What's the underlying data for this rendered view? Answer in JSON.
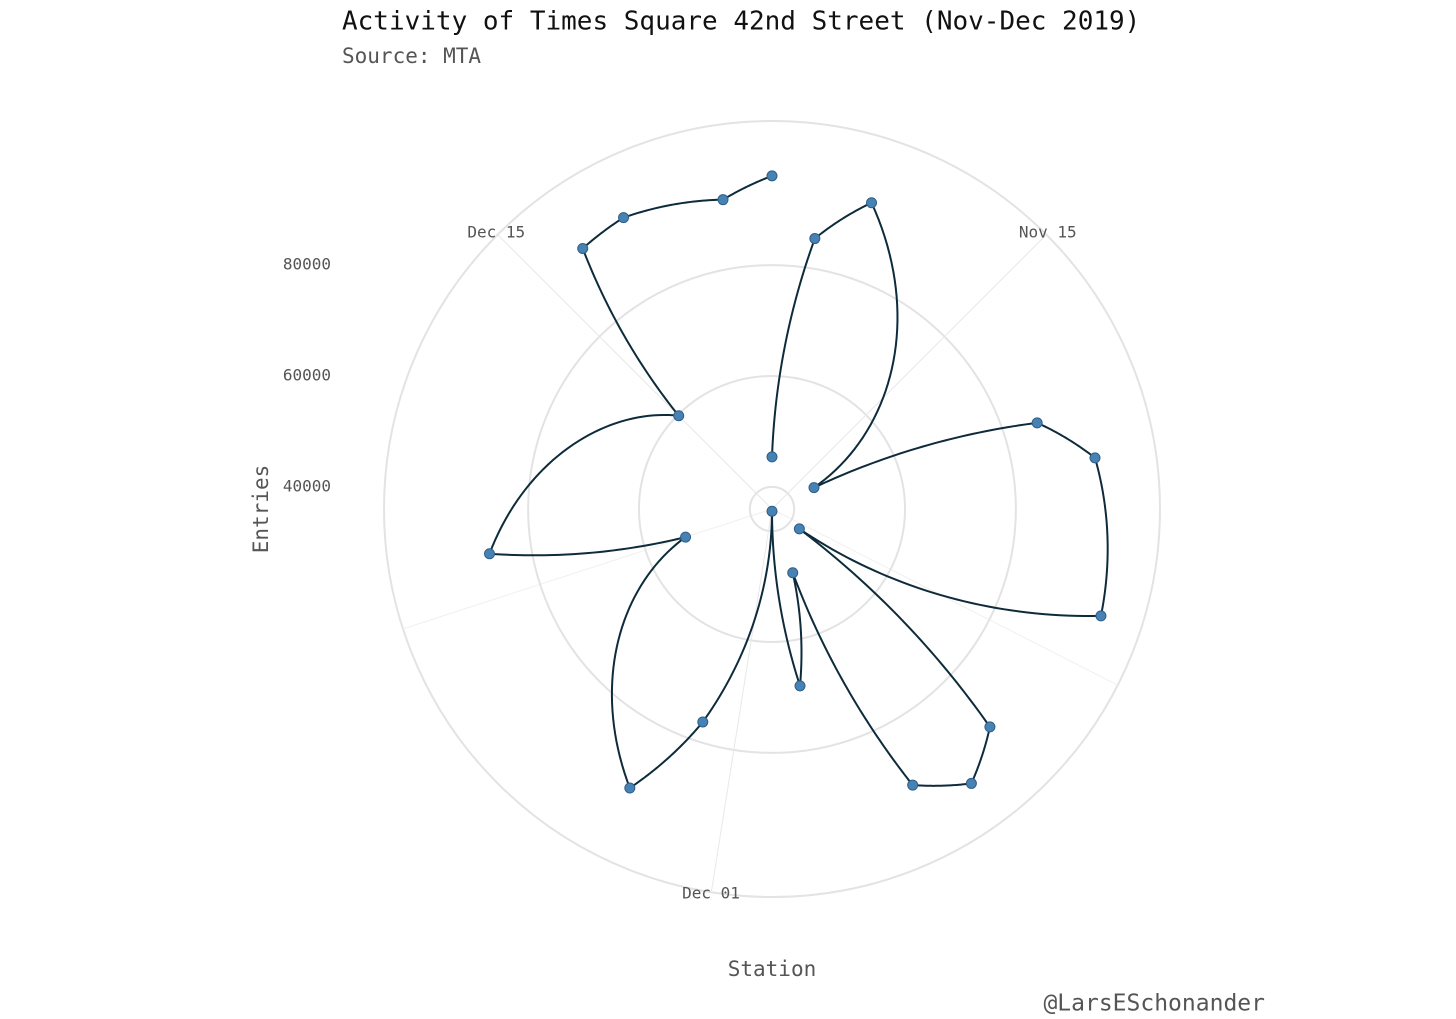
{
  "chart_data": {
    "type": "polar-line",
    "title": "Activity of Times Square 42nd Street (Nov-Dec 2019)",
    "subtitle": "Source: MTA",
    "x_label": "Station",
    "y_label": "Entries",
    "caption": "@LarsESchonander",
    "series": [
      {
        "name": "Entries",
        "color": "#4682b4",
        "line_color": "#0d2b3a",
        "x": [
          "Nov 10",
          "Nov 11",
          "Nov 12",
          "Nov 17",
          "Nov 18",
          "Nov 19",
          "Nov 22",
          "Nov 24",
          "Nov 25",
          "Nov 26",
          "Nov 27",
          "Nov 28",
          "Nov 29",
          "Nov 30",
          "Dec 02",
          "Dec 03",
          "Dec 08",
          "Dec 09",
          "Dec 15",
          "Dec 16",
          "Dec 17",
          "Dec 19",
          "Dec 20"
        ],
        "values": [
          45400,
          85400,
          94100,
          44500,
          86300,
          95000,
          98400,
          42100,
          91600,
          97200,
          91900,
          48100,
          68300,
          36400,
          76400,
          92500,
          52400,
          87600,
          59800,
          94100,
          95000,
          92500,
          96100
        ]
      }
    ],
    "xlim": [
      "Nov 10",
      "Dec 20"
    ],
    "xticks": [
      "Nov 15",
      "Dec 01",
      "Dec 15"
    ],
    "ylim": [
      36000,
      106000
    ],
    "yticks": [
      40000,
      60000,
      80000
    ],
    "grid": true
  }
}
